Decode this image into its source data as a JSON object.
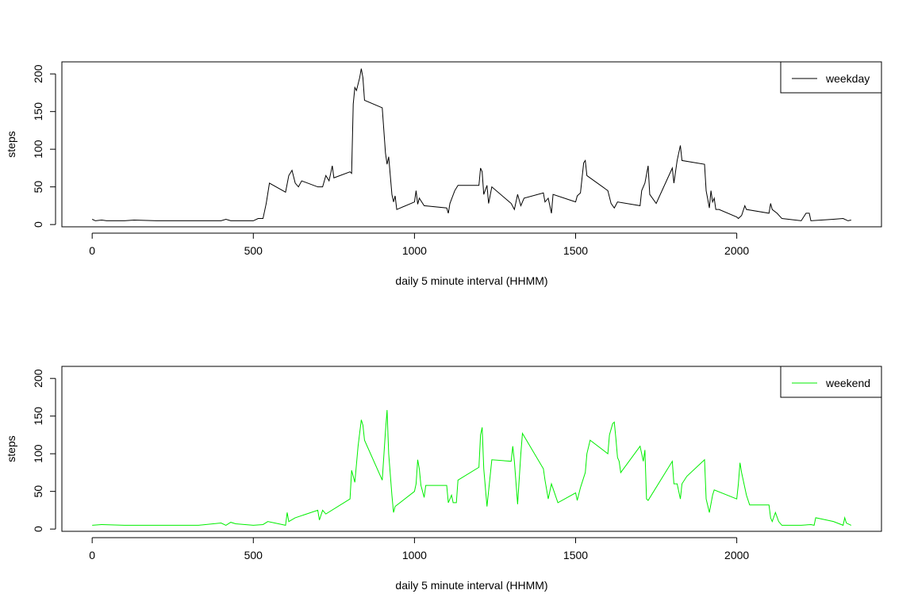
{
  "chart_data": [
    {
      "type": "line",
      "xlabel": "daily 5 minute interval (HHMM)",
      "ylabel": "steps",
      "x": [
        0,
        10,
        30,
        45,
        100,
        130,
        200,
        300,
        400,
        415,
        430,
        500,
        515,
        530,
        540,
        550,
        600,
        610,
        620,
        630,
        640,
        650,
        700,
        715,
        725,
        735,
        745,
        750,
        800,
        805,
        810,
        815,
        820,
        830,
        835,
        840,
        845,
        900,
        910,
        915,
        920,
        925,
        930,
        935,
        940,
        945,
        1000,
        1005,
        1010,
        1015,
        1030,
        1100,
        1105,
        1110,
        1125,
        1135,
        1200,
        1205,
        1210,
        1215,
        1225,
        1230,
        1240,
        1300,
        1310,
        1320,
        1330,
        1340,
        1400,
        1405,
        1415,
        1425,
        1430,
        1500,
        1505,
        1515,
        1525,
        1530,
        1535,
        1600,
        1610,
        1620,
        1630,
        1700,
        1705,
        1715,
        1725,
        1730,
        1750,
        1800,
        1805,
        1815,
        1825,
        1830,
        1900,
        1905,
        1915,
        1920,
        1925,
        1930,
        1935,
        1945,
        2000,
        2005,
        2015,
        2025,
        2030,
        2100,
        2105,
        2110,
        2125,
        2140,
        2200,
        2215,
        2225,
        2230,
        2300,
        2330,
        2345,
        2355
      ],
      "series": [
        {
          "name": "weekday",
          "color": "#000000",
          "values": [
            7,
            5,
            6,
            5,
            5,
            6,
            5,
            5,
            5,
            7,
            5,
            5,
            8,
            8,
            28,
            55,
            43,
            65,
            72,
            55,
            50,
            58,
            50,
            50,
            65,
            58,
            78,
            62,
            70,
            68,
            160,
            182,
            178,
            195,
            207,
            195,
            165,
            155,
            95,
            80,
            90,
            65,
            40,
            30,
            38,
            20,
            30,
            45,
            27,
            35,
            25,
            22,
            15,
            28,
            45,
            52,
            52,
            75,
            70,
            40,
            52,
            28,
            50,
            28,
            20,
            40,
            25,
            35,
            42,
            30,
            35,
            15,
            40,
            30,
            38,
            42,
            82,
            85,
            65,
            45,
            28,
            22,
            30,
            25,
            45,
            55,
            78,
            40,
            28,
            75,
            55,
            85,
            105,
            85,
            80,
            45,
            22,
            45,
            30,
            35,
            20,
            20,
            10,
            8,
            12,
            25,
            20,
            15,
            28,
            20,
            15,
            8,
            5,
            15,
            15,
            5,
            7,
            8,
            5,
            6
          ]
        }
      ],
      "xlim": [
        -94,
        2449
      ],
      "ylim": [
        -3,
        216
      ],
      "xticks": [
        0,
        500,
        1000,
        1500,
        2000
      ],
      "yticks": [
        0,
        50,
        100,
        150,
        200
      ],
      "legend": "topright"
    },
    {
      "type": "line",
      "xlabel": "daily 5 minute interval (HHMM)",
      "ylabel": "steps",
      "x": [
        0,
        30,
        100,
        200,
        300,
        330,
        400,
        415,
        430,
        445,
        500,
        530,
        545,
        600,
        605,
        610,
        630,
        700,
        705,
        715,
        725,
        800,
        805,
        815,
        825,
        835,
        840,
        845,
        900,
        910,
        915,
        920,
        930,
        935,
        940,
        1000,
        1005,
        1010,
        1015,
        1020,
        1030,
        1035,
        1100,
        1105,
        1115,
        1120,
        1130,
        1135,
        1200,
        1205,
        1210,
        1215,
        1225,
        1240,
        1300,
        1305,
        1310,
        1320,
        1330,
        1335,
        1400,
        1405,
        1415,
        1425,
        1445,
        1500,
        1505,
        1515,
        1530,
        1535,
        1545,
        1600,
        1605,
        1615,
        1620,
        1625,
        1630,
        1635,
        1640,
        1700,
        1710,
        1715,
        1720,
        1725,
        1800,
        1805,
        1815,
        1825,
        1830,
        1845,
        1900,
        1905,
        1915,
        1925,
        1930,
        2000,
        2005,
        2010,
        2015,
        2025,
        2030,
        2040,
        2100,
        2105,
        2110,
        2120,
        2130,
        2140,
        2200,
        2230,
        2240,
        2245,
        2300,
        2330,
        2335,
        2340,
        2355
      ],
      "series": [
        {
          "name": "weekend",
          "color": "#00ee00",
          "values": [
            5,
            6,
            5,
            5,
            5,
            5,
            8,
            5,
            9,
            7,
            5,
            6,
            10,
            5,
            22,
            10,
            15,
            25,
            12,
            25,
            20,
            40,
            78,
            62,
            110,
            145,
            138,
            118,
            65,
            130,
            158,
            100,
            45,
            22,
            30,
            50,
            60,
            92,
            80,
            58,
            42,
            58,
            58,
            35,
            45,
            35,
            35,
            65,
            82,
            125,
            135,
            80,
            30,
            92,
            90,
            110,
            90,
            33,
            100,
            127,
            80,
            65,
            40,
            60,
            35,
            48,
            38,
            55,
            75,
            100,
            118,
            100,
            125,
            140,
            142,
            120,
            95,
            90,
            75,
            110,
            90,
            105,
            40,
            38,
            90,
            60,
            60,
            40,
            60,
            70,
            92,
            40,
            22,
            45,
            52,
            40,
            60,
            88,
            75,
            55,
            45,
            32,
            32,
            15,
            10,
            22,
            10,
            5,
            5,
            6,
            5,
            15,
            10,
            5,
            15,
            8,
            5
          ]
        }
      ],
      "xlim": [
        -94,
        2449
      ],
      "ylim": [
        -3,
        216
      ],
      "xticks": [
        0,
        500,
        1000,
        1500,
        2000
      ],
      "yticks": [
        0,
        50,
        100,
        150,
        200
      ],
      "legend": "topright"
    }
  ]
}
